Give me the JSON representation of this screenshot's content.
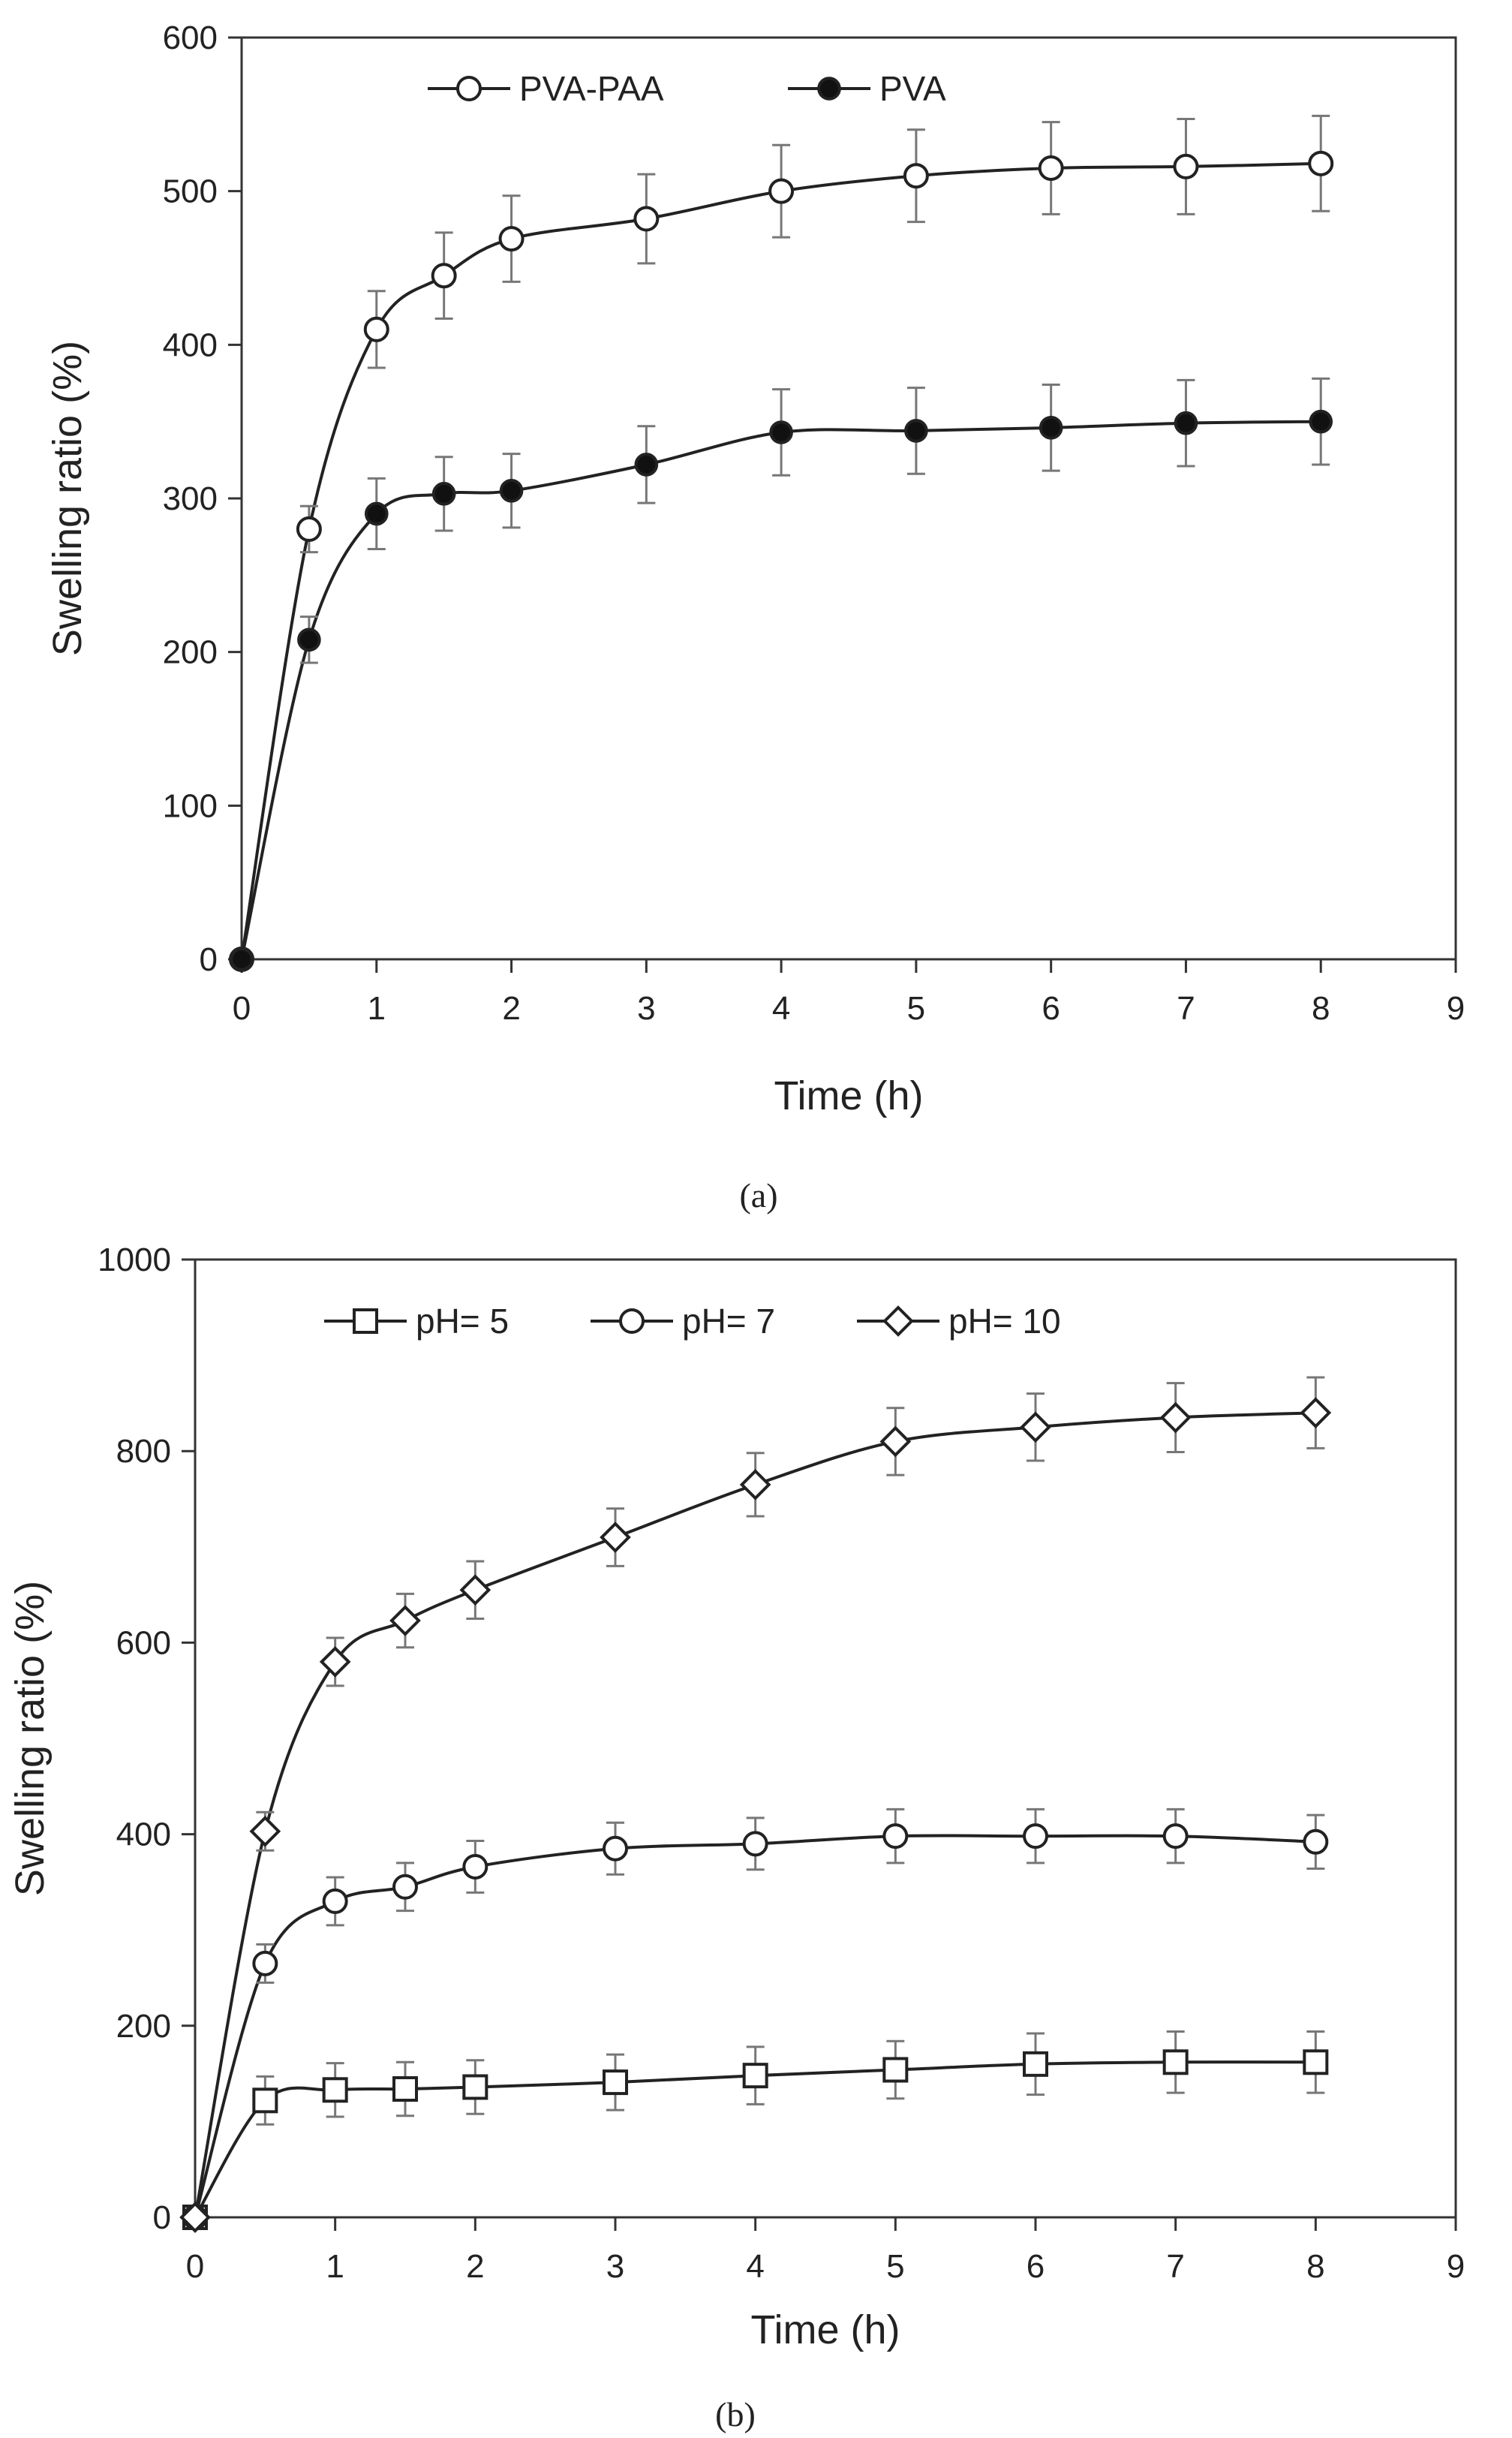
{
  "chart_data": [
    {
      "type": "line",
      "panel_label": "(a)",
      "xlabel": "Time (h)",
      "ylabel": "Swelling ratio (%)",
      "xlim": [
        0,
        9
      ],
      "ylim": [
        0,
        600
      ],
      "xticks": [
        0,
        1,
        2,
        3,
        4,
        5,
        6,
        7,
        8,
        9
      ],
      "yticks": [
        0,
        100,
        200,
        300,
        400,
        500,
        600
      ],
      "grid": false,
      "legend_position": "top-left",
      "series": [
        {
          "name": "PVA-PAA",
          "marker": "open-circle",
          "x": [
            0,
            0.5,
            1,
            1.5,
            2,
            3,
            4,
            5,
            6,
            7,
            8
          ],
          "y": [
            0,
            280,
            410,
            445,
            469,
            482,
            500,
            510,
            515,
            516,
            518
          ],
          "error": [
            0,
            15,
            25,
            28,
            28,
            29,
            30,
            30,
            30,
            31,
            31
          ]
        },
        {
          "name": "PVA",
          "marker": "filled-circle",
          "x": [
            0,
            0.5,
            1,
            1.5,
            2,
            3,
            4,
            5,
            6,
            7,
            8
          ],
          "y": [
            0,
            208,
            290,
            303,
            305,
            322,
            343,
            344,
            346,
            349,
            350
          ],
          "error": [
            0,
            15,
            23,
            24,
            24,
            25,
            28,
            28,
            28,
            28,
            28
          ]
        }
      ]
    },
    {
      "type": "line",
      "panel_label": "(b)",
      "xlabel": "Time (h)",
      "ylabel": "Swelling ratio (%)",
      "xlim": [
        0,
        9
      ],
      "ylim": [
        0,
        1000
      ],
      "xticks": [
        0,
        1,
        2,
        3,
        4,
        5,
        6,
        7,
        8,
        9
      ],
      "yticks": [
        0,
        200,
        400,
        600,
        800,
        1000
      ],
      "grid": false,
      "legend_position": "top-left",
      "series": [
        {
          "name": "pH= 5",
          "marker": "open-square",
          "x": [
            0,
            0.5,
            1,
            1.5,
            2,
            3,
            4,
            5,
            6,
            7,
            8
          ],
          "y": [
            0,
            122,
            133,
            134,
            136,
            141,
            148,
            154,
            160,
            162,
            162
          ],
          "error": [
            0,
            25,
            28,
            28,
            28,
            29,
            30,
            30,
            32,
            32,
            32
          ]
        },
        {
          "name": "pH= 7",
          "marker": "open-circle",
          "x": [
            0,
            0.5,
            1,
            1.5,
            2,
            3,
            4,
            5,
            6,
            7,
            8
          ],
          "y": [
            0,
            265,
            330,
            345,
            366,
            385,
            390,
            398,
            398,
            398,
            392
          ],
          "error": [
            0,
            20,
            25,
            25,
            27,
            27,
            27,
            28,
            28,
            28,
            28
          ]
        },
        {
          "name": "pH= 10",
          "marker": "open-diamond",
          "x": [
            0,
            0.5,
            1,
            1.5,
            2,
            3,
            4,
            5,
            6,
            7,
            8
          ],
          "y": [
            0,
            403,
            580,
            623,
            655,
            710,
            765,
            810,
            825,
            835,
            840
          ],
          "error": [
            0,
            20,
            25,
            28,
            30,
            30,
            33,
            35,
            35,
            36,
            37
          ]
        }
      ]
    }
  ]
}
